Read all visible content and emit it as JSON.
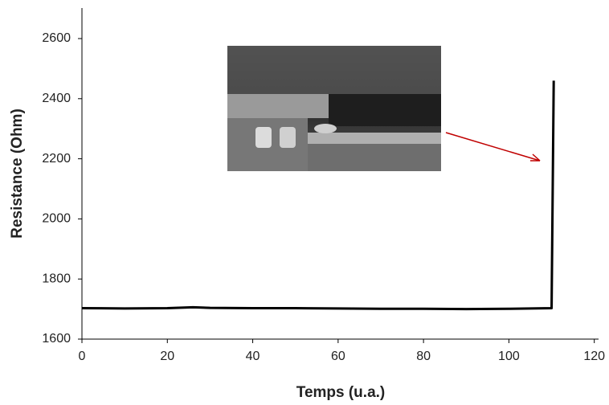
{
  "chart_data": {
    "type": "line",
    "y_label": "Resistance (Ohm)",
    "x_label": "Temps (u.a.)",
    "x": [
      0,
      10,
      20,
      26,
      30,
      40,
      50,
      60,
      70,
      80,
      90,
      100,
      110,
      110.5
    ],
    "series": [
      {
        "color": "#000000",
        "values": [
          1703,
          1702,
          1703,
          1706,
          1704,
          1703,
          1703,
          1702,
          1701,
          1701,
          1700,
          1701,
          1703,
          2460
        ]
      }
    ],
    "xlim": [
      0,
      121
    ],
    "xticks": [
      0,
      20,
      40,
      60,
      80,
      100,
      120
    ],
    "ylim": [
      1600,
      2700
    ],
    "yticks": [
      1600,
      1800,
      2000,
      2200,
      2400,
      2600
    ]
  }
}
